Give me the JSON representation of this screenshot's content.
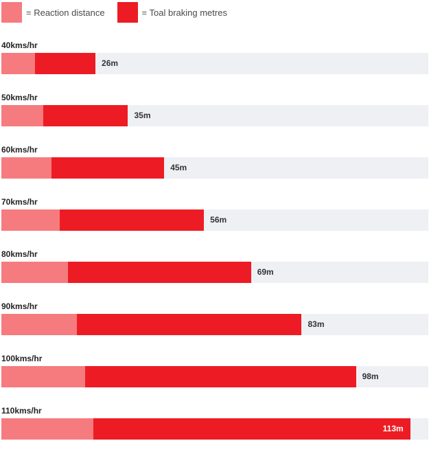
{
  "legend": {
    "reaction_label": "= Reaction distance",
    "braking_label": "= Toal braking metres"
  },
  "colors": {
    "reaction": "#f57b7e",
    "braking": "#ed1c24",
    "track": "#eef0f4"
  },
  "chart_data": {
    "type": "bar",
    "orientation": "horizontal",
    "stacked": true,
    "categories": [
      "40kms/hr",
      "50kms/hr",
      "60kms/hr",
      "70kms/hr",
      "80kms/hr",
      "90kms/hr",
      "100kms/hr",
      "110kms/hr"
    ],
    "series": [
      {
        "name": "= Reaction distance",
        "values": [
          9.3,
          11.6,
          13.9,
          16.1,
          18.4,
          20.9,
          23.2,
          25.4
        ]
      },
      {
        "name": "= Toal braking metres",
        "values": [
          16.7,
          23.4,
          31.1,
          39.9,
          50.6,
          62.1,
          74.8,
          87.6
        ]
      }
    ],
    "total_labels": [
      "26m",
      "35m",
      "45m",
      "56m",
      "69m",
      "83m",
      "98m",
      "113m"
    ],
    "xlim": [
      0,
      118
    ],
    "grid": false,
    "legend_position": "top-left"
  }
}
